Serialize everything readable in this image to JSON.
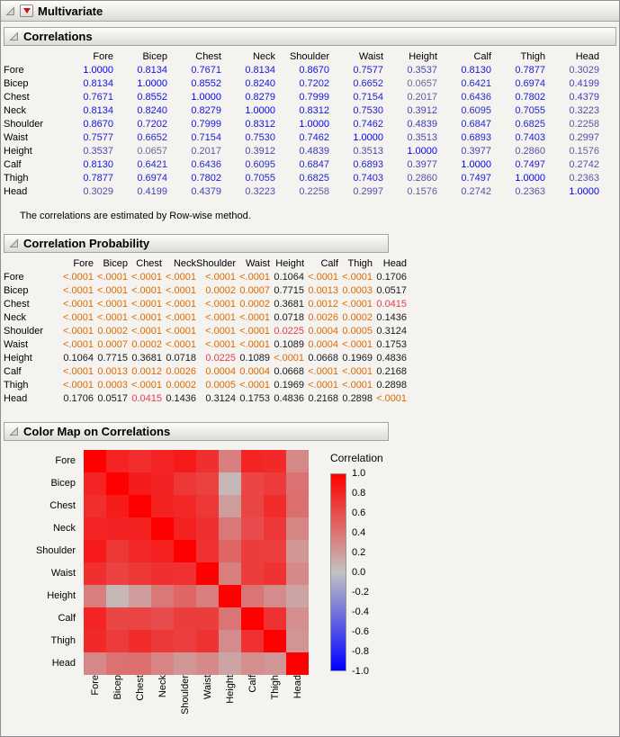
{
  "report_title": "Multivariate",
  "variables": [
    "Fore",
    "Bicep",
    "Chest",
    "Neck",
    "Shoulder",
    "Waist",
    "Height",
    "Calf",
    "Thigh",
    "Head"
  ],
  "correlations": {
    "title": "Correlations",
    "note": "The correlations are estimated by Row-wise method."
  },
  "probability": {
    "title": "Correlation Probability",
    "matrix": [
      [
        "<.0001",
        "<.0001",
        "<.0001",
        "<.0001",
        "<.0001",
        "<.0001",
        "0.1064",
        "<.0001",
        "<.0001",
        "0.1706"
      ],
      [
        "<.0001",
        "<.0001",
        "<.0001",
        "<.0001",
        "0.0002",
        "0.0007",
        "0.7715",
        "0.0013",
        "0.0003",
        "0.0517"
      ],
      [
        "<.0001",
        "<.0001",
        "<.0001",
        "<.0001",
        "<.0001",
        "0.0002",
        "0.3681",
        "0.0012",
        "<.0001",
        "0.0415"
      ],
      [
        "<.0001",
        "<.0001",
        "<.0001",
        "<.0001",
        "<.0001",
        "<.0001",
        "0.0718",
        "0.0026",
        "0.0002",
        "0.1436"
      ],
      [
        "<.0001",
        "0.0002",
        "<.0001",
        "<.0001",
        "<.0001",
        "<.0001",
        "0.0225",
        "0.0004",
        "0.0005",
        "0.3124"
      ],
      [
        "<.0001",
        "0.0007",
        "0.0002",
        "<.0001",
        "<.0001",
        "<.0001",
        "0.1089",
        "0.0004",
        "<.0001",
        "0.1753"
      ],
      [
        "0.1064",
        "0.7715",
        "0.3681",
        "0.0718",
        "0.0225",
        "0.1089",
        "<.0001",
        "0.0668",
        "0.1969",
        "0.4836"
      ],
      [
        "<.0001",
        "0.0013",
        "0.0012",
        "0.0026",
        "0.0004",
        "0.0004",
        "0.0668",
        "<.0001",
        "<.0001",
        "0.2168"
      ],
      [
        "<.0001",
        "0.0003",
        "<.0001",
        "0.0002",
        "0.0005",
        "<.0001",
        "0.1969",
        "<.0001",
        "<.0001",
        "0.2898"
      ],
      [
        "0.1706",
        "0.0517",
        "0.0415",
        "0.1436",
        "0.3124",
        "0.1753",
        "0.4836",
        "0.2168",
        "0.2898",
        "<.0001"
      ]
    ]
  },
  "colormap": {
    "title": "Color Map on Correlations",
    "legend_title": "Correlation",
    "legend_ticks": [
      "1.0",
      "0.8",
      "0.6",
      "0.4",
      "0.2",
      "0.0",
      "-0.2",
      "-0.4",
      "-0.6",
      "-0.8",
      "-1.0"
    ]
  },
  "colors": {
    "corr_text_one": "#0000f0",
    "corr_text_zero": "#73738f",
    "p_significant_strong": "#dd6a00",
    "p_significant_mild": "#e83a4e",
    "heat_positive": "#ff0000",
    "heat_zero": "#c3c3c3",
    "heat_negative": "#0000ff",
    "red_triangle": "#cc1111"
  },
  "chart_data": {
    "type": "heatmap",
    "title": "Color Map on Correlations",
    "x_categories": [
      "Fore",
      "Bicep",
      "Chest",
      "Neck",
      "Shoulder",
      "Waist",
      "Height",
      "Calf",
      "Thigh",
      "Head"
    ],
    "y_categories": [
      "Fore",
      "Bicep",
      "Chest",
      "Neck",
      "Shoulder",
      "Waist",
      "Height",
      "Calf",
      "Thigh",
      "Head"
    ],
    "values": [
      [
        1.0,
        0.8134,
        0.7671,
        0.8134,
        0.867,
        0.7577,
        0.3537,
        0.813,
        0.7877,
        0.3029
      ],
      [
        0.8134,
        1.0,
        0.8552,
        0.824,
        0.7202,
        0.6652,
        0.0657,
        0.6421,
        0.6974,
        0.4199
      ],
      [
        0.7671,
        0.8552,
        1.0,
        0.8279,
        0.7999,
        0.7154,
        0.2017,
        0.6436,
        0.7802,
        0.4379
      ],
      [
        0.8134,
        0.824,
        0.8279,
        1.0,
        0.8312,
        0.753,
        0.3912,
        0.6095,
        0.7055,
        0.3223
      ],
      [
        0.867,
        0.7202,
        0.7999,
        0.8312,
        1.0,
        0.7462,
        0.4839,
        0.6847,
        0.6825,
        0.2258
      ],
      [
        0.7577,
        0.6652,
        0.7154,
        0.753,
        0.7462,
        1.0,
        0.3513,
        0.6893,
        0.7403,
        0.2997
      ],
      [
        0.3537,
        0.0657,
        0.2017,
        0.3912,
        0.4839,
        0.3513,
        1.0,
        0.3977,
        0.286,
        0.1576
      ],
      [
        0.813,
        0.6421,
        0.6436,
        0.6095,
        0.6847,
        0.6893,
        0.3977,
        1.0,
        0.7497,
        0.2742
      ],
      [
        0.7877,
        0.6974,
        0.7802,
        0.7055,
        0.6825,
        0.7403,
        0.286,
        0.7497,
        1.0,
        0.2363
      ],
      [
        0.3029,
        0.4199,
        0.4379,
        0.3223,
        0.2258,
        0.2997,
        0.1576,
        0.2742,
        0.2363,
        1.0
      ]
    ],
    "scale": {
      "min": -1.0,
      "max": 1.0,
      "legend_title": "Correlation"
    },
    "legend_position": "right",
    "grid": false
  }
}
